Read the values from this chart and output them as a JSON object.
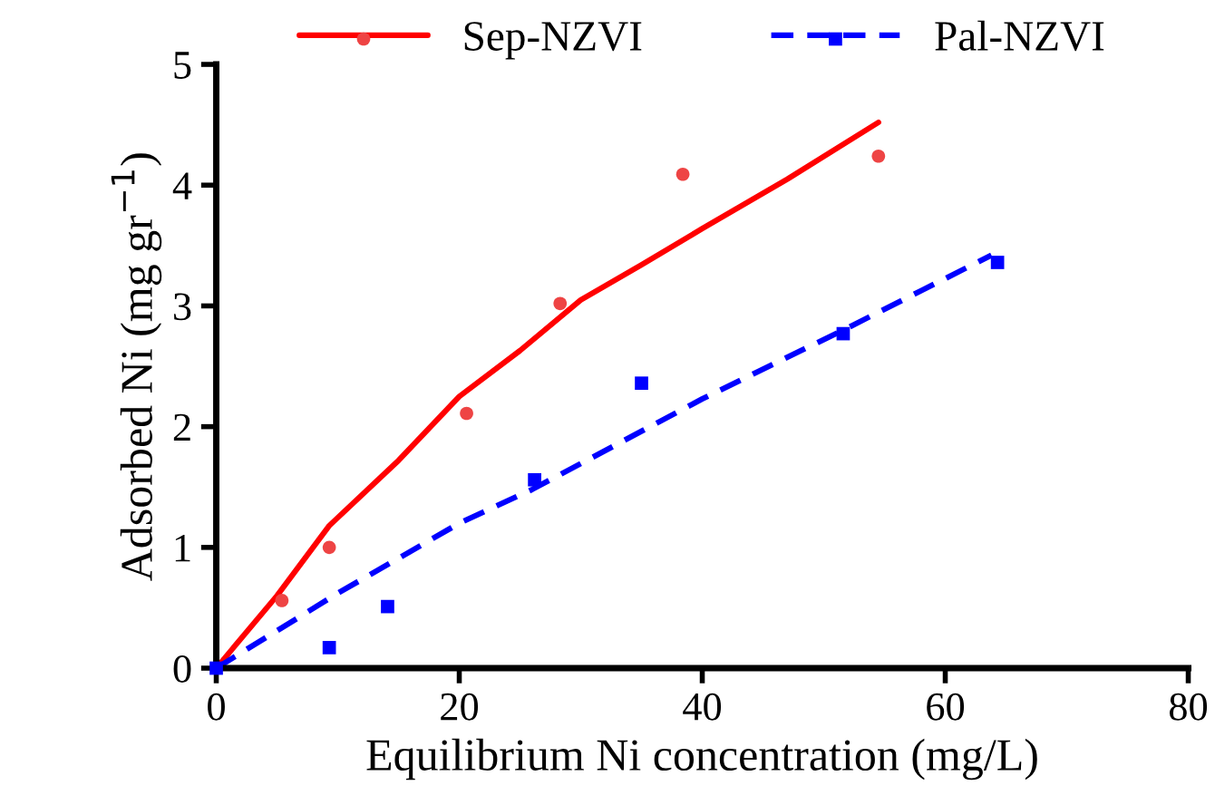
{
  "chart_data": {
    "type": "scatter",
    "xlabel": "Equilibrium Ni concentration (mg/L)",
    "ylabel": "Adsorbed Ni (mg gr$^{−1}$)",
    "xlim": [
      0,
      80
    ],
    "ylim": [
      0,
      5
    ],
    "xticks": [
      0,
      20,
      40,
      60,
      80
    ],
    "yticks": [
      0,
      1,
      2,
      3,
      4,
      5
    ],
    "grid": false,
    "legend": "top",
    "series": [
      {
        "name": "Sep-NZVI",
        "color": "#ee4444",
        "marker": "circle",
        "x": [
          5.4,
          9.3,
          20.6,
          28.3,
          38.4,
          54.5
        ],
        "values": [
          0.56,
          1.0,
          2.11,
          3.02,
          4.09,
          4.24
        ]
      },
      {
        "type": "line",
        "color": "#ff0000",
        "line_style": "solid",
        "x": [
          0,
          5,
          9.3,
          15,
          20,
          25,
          30,
          35,
          40,
          47,
          54.5
        ],
        "values": [
          0,
          0.6,
          1.18,
          1.72,
          2.25,
          2.63,
          3.05,
          3.34,
          3.64,
          4.05,
          4.52
        ]
      },
      {
        "name": "Pal-NZVI",
        "color": "#0000ff",
        "marker": "square",
        "x": [
          0,
          9.3,
          14.1,
          26.2,
          35.0,
          51.6,
          64.3
        ],
        "values": [
          0,
          0.17,
          0.51,
          1.56,
          2.36,
          2.77,
          3.36
        ]
      },
      {
        "type": "line",
        "color": "#0000ff",
        "line_style": "dashed",
        "x": [
          0,
          10,
          20,
          26,
          40,
          52,
          63.8
        ],
        "values": [
          0,
          0.62,
          1.2,
          1.48,
          2.23,
          2.82,
          3.42
        ]
      }
    ]
  }
}
